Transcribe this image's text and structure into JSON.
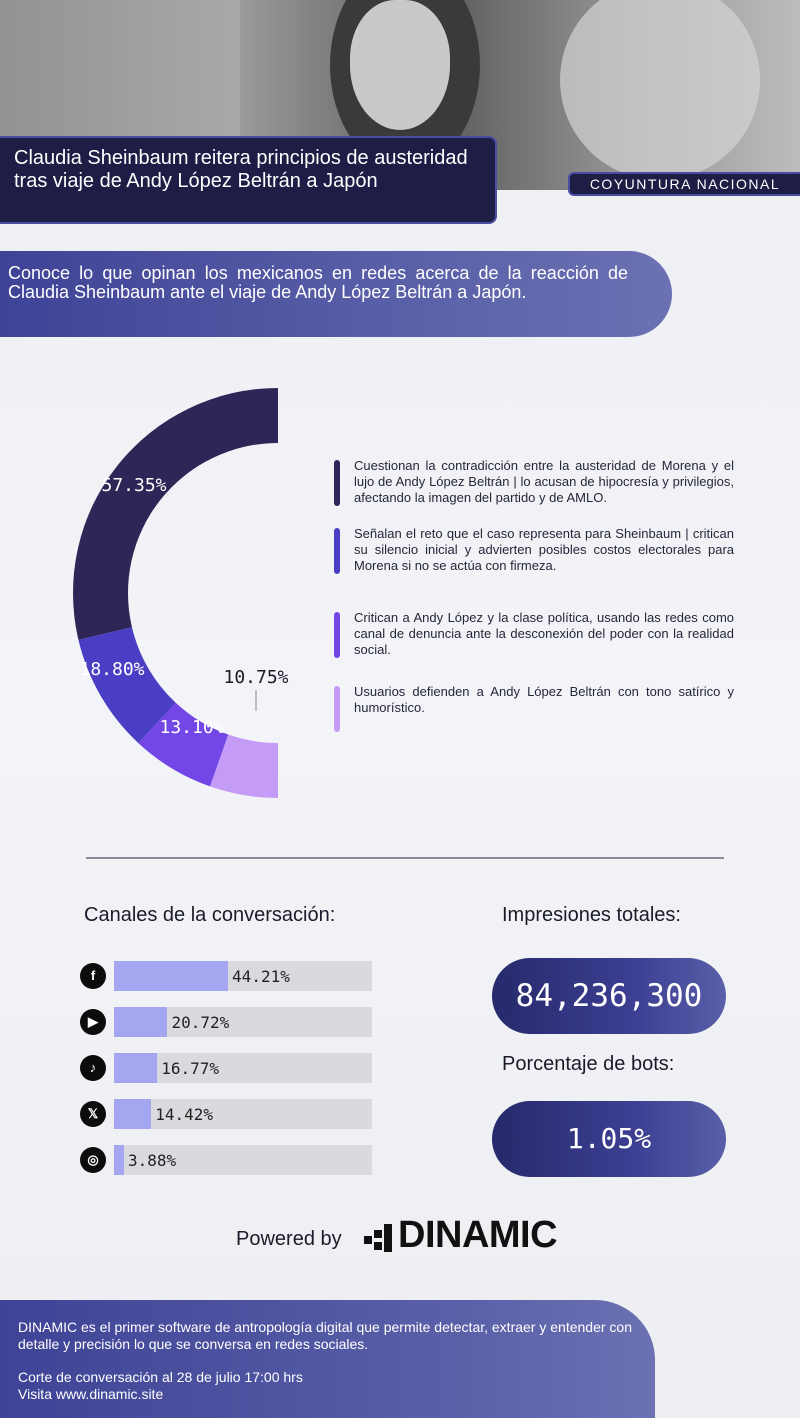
{
  "header": {
    "title": "Claudia Sheinbaum reitera principios de austeridad tras viaje de Andy López Beltrán a Japón",
    "tag": "COYUNTURA NACIONAL"
  },
  "intro": "Conoce lo que opinan los mexicanos en redes acerca de la reacción de Claudia Sheinbaum ante el viaje de Andy López Beltrán a Japón.",
  "chart_data": [
    {
      "type": "pie",
      "categories": [
        "Cuestionan la contradicción entre la austeridad de Morena y el lujo de Andy López Beltrán | lo acusan de hipocresía y privilegios, afectando la imagen del partido y de AMLO.",
        "Señalan el reto que el caso representa para Sheinbaum | critican su silencio inicial y advierten posibles costos electorales para Morena si no se actúa con firmeza.",
        "Critican a Andy López  y la clase política, usando las redes como canal de denuncia ante la desconexión del poder con la realidad social.",
        "Usuarios defienden a Andy López Beltrán con tono satírico y humorístico."
      ],
      "values": [
        57.35,
        18.8,
        13.1,
        10.75
      ],
      "labels": [
        "57.35%",
        "18.80%",
        "13.10%",
        "10.75%"
      ],
      "colors": [
        "#2f2658",
        "#4a3fc4",
        "#7346e6",
        "#c49bf7"
      ],
      "style": "half-donut, left side, starting at top"
    },
    {
      "type": "bar",
      "title": "Canales de la conversación:",
      "categories": [
        "facebook-icon",
        "youtube-icon",
        "tiktok-icon",
        "x-icon",
        "instagram-icon"
      ],
      "values": [
        44.21,
        20.72,
        16.77,
        14.42,
        3.88
      ],
      "labels": [
        "44.21%",
        "20.72%",
        "16.77%",
        "14.42%",
        "3.88%"
      ],
      "xlim": [
        0,
        100
      ],
      "orientation": "horizontal",
      "color": "#a4a6f0"
    }
  ],
  "stats": {
    "impressions_label": "Impresiones totales:",
    "impressions_value": "84,236,300",
    "bots_label": "Porcentaje de bots:",
    "bots_value": "1.05%"
  },
  "powered": {
    "prefix": "Powered by",
    "brand": "DINAMIC"
  },
  "footer": {
    "description": "DINAMIC es el primer software de antropología digital que permite detectar, extraer y entender con detalle y precisión lo que se conversa en redes sociales.",
    "cutoff": "Corte de conversación al 28 de julio 17:00 hrs",
    "site": "Visita www.dinamic.site"
  }
}
